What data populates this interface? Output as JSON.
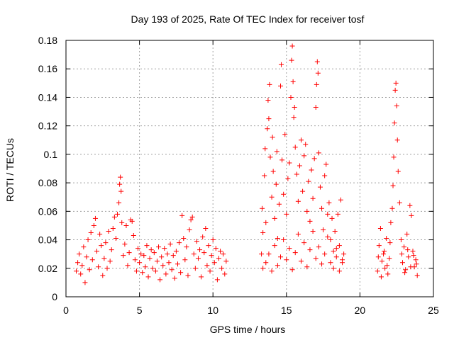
{
  "chart_data": {
    "type": "scatter",
    "title": "Day 193 of 2025, Rate Of TEC Index for receiver tosf",
    "xlabel": "GPS time / hours",
    "ylabel": "ROTI / TECUs",
    "xlim": [
      0,
      25
    ],
    "ylim": [
      0,
      0.18
    ],
    "x_ticks": [
      0,
      5,
      10,
      15,
      20,
      25
    ],
    "x_tick_labels": [
      "0",
      "5",
      "10",
      "15",
      "20",
      "25"
    ],
    "y_ticks": [
      0,
      0.02,
      0.04,
      0.06,
      0.08,
      0.1,
      0.12,
      0.14,
      0.16,
      0.18
    ],
    "y_tick_labels": [
      "0",
      "0.02",
      "0.04",
      "0.06",
      "0.08",
      "0.1",
      "0.12",
      "0.14",
      "0.16",
      "0.18"
    ],
    "grid": true,
    "marker": "+",
    "color": "#ff0000",
    "series": [
      {
        "name": "ROTI",
        "points": [
          [
            0.7,
            0.018
          ],
          [
            0.8,
            0.024
          ],
          [
            0.9,
            0.03
          ],
          [
            1.0,
            0.016
          ],
          [
            1.1,
            0.022
          ],
          [
            1.2,
            0.035
          ],
          [
            1.3,
            0.01
          ],
          [
            1.4,
            0.028
          ],
          [
            1.5,
            0.04
          ],
          [
            1.6,
            0.019
          ],
          [
            1.7,
            0.045
          ],
          [
            1.8,
            0.026
          ],
          [
            1.9,
            0.05
          ],
          [
            2.0,
            0.055
          ],
          [
            2.1,
            0.032
          ],
          [
            2.2,
            0.021
          ],
          [
            2.3,
            0.044
          ],
          [
            2.4,
            0.036
          ],
          [
            2.5,
            0.015
          ],
          [
            2.6,
            0.027
          ],
          [
            2.7,
            0.038
          ],
          [
            2.8,
            0.02
          ],
          [
            2.9,
            0.046
          ],
          [
            3.0,
            0.025
          ],
          [
            3.1,
            0.033
          ],
          [
            3.2,
            0.048
          ],
          [
            3.3,
            0.056
          ],
          [
            3.4,
            0.041
          ],
          [
            3.5,
            0.058
          ],
          [
            3.6,
            0.066
          ],
          [
            3.65,
            0.079
          ],
          [
            3.7,
            0.084
          ],
          [
            3.75,
            0.074
          ],
          [
            3.8,
            0.052
          ],
          [
            3.9,
            0.029
          ],
          [
            4.0,
            0.037
          ],
          [
            4.1,
            0.05
          ],
          [
            4.2,
            0.022
          ],
          [
            4.3,
            0.031
          ],
          [
            4.4,
            0.054
          ],
          [
            4.5,
            0.053
          ],
          [
            4.6,
            0.043
          ],
          [
            4.7,
            0.026
          ],
          [
            4.8,
            0.018
          ],
          [
            4.9,
            0.034
          ],
          [
            5.0,
            0.024
          ],
          [
            5.1,
            0.03
          ],
          [
            5.2,
            0.017
          ],
          [
            5.3,
            0.029
          ],
          [
            5.4,
            0.021
          ],
          [
            5.5,
            0.036
          ],
          [
            5.6,
            0.014
          ],
          [
            5.7,
            0.027
          ],
          [
            5.8,
            0.033
          ],
          [
            5.9,
            0.02
          ],
          [
            6.0,
            0.031
          ],
          [
            6.1,
            0.018
          ],
          [
            6.2,
            0.025
          ],
          [
            6.3,
            0.035
          ],
          [
            6.4,
            0.012
          ],
          [
            6.5,
            0.028
          ],
          [
            6.6,
            0.022
          ],
          [
            6.7,
            0.034
          ],
          [
            6.8,
            0.016
          ],
          [
            6.9,
            0.03
          ],
          [
            7.0,
            0.024
          ],
          [
            7.1,
            0.037
          ],
          [
            7.2,
            0.019
          ],
          [
            7.3,
            0.029
          ],
          [
            7.4,
            0.013
          ],
          [
            7.5,
            0.032
          ],
          [
            7.6,
            0.023
          ],
          [
            7.7,
            0.038
          ],
          [
            7.8,
            0.017
          ],
          [
            7.9,
            0.057
          ],
          [
            8.0,
            0.041
          ],
          [
            8.1,
            0.026
          ],
          [
            8.2,
            0.035
          ],
          [
            8.3,
            0.015
          ],
          [
            8.4,
            0.047
          ],
          [
            8.5,
            0.054
          ],
          [
            8.6,
            0.056
          ],
          [
            8.7,
            0.03
          ],
          [
            8.8,
            0.02
          ],
          [
            8.9,
            0.039
          ],
          [
            9.0,
            0.027
          ],
          [
            9.1,
            0.033
          ],
          [
            9.2,
            0.014
          ],
          [
            9.3,
            0.042
          ],
          [
            9.4,
            0.031
          ],
          [
            9.5,
            0.048
          ],
          [
            9.6,
            0.022
          ],
          [
            9.7,
            0.036
          ],
          [
            9.8,
            0.018
          ],
          [
            9.9,
            0.029
          ],
          [
            10.0,
            0.04
          ],
          [
            10.1,
            0.024
          ],
          [
            10.2,
            0.034
          ],
          [
            10.3,
            0.012
          ],
          [
            10.4,
            0.027
          ],
          [
            10.5,
            0.032
          ],
          [
            10.6,
            0.02
          ],
          [
            10.7,
            0.03
          ],
          [
            10.8,
            0.016
          ],
          [
            10.9,
            0.025
          ],
          [
            13.3,
            0.03
          ],
          [
            13.35,
            0.062
          ],
          [
            13.4,
            0.045
          ],
          [
            13.5,
            0.085
          ],
          [
            13.55,
            0.104
          ],
          [
            13.6,
            0.052
          ],
          [
            13.7,
            0.118
          ],
          [
            13.75,
            0.138
          ],
          [
            13.8,
            0.125
          ],
          [
            13.85,
            0.149
          ],
          [
            13.9,
            0.098
          ],
          [
            14.0,
            0.07
          ],
          [
            14.05,
            0.112
          ],
          [
            14.1,
            0.088
          ],
          [
            14.2,
            0.055
          ],
          [
            14.3,
            0.079
          ],
          [
            14.35,
            0.102
          ],
          [
            14.4,
            0.041
          ],
          [
            14.5,
            0.065
          ],
          [
            14.6,
            0.148
          ],
          [
            14.65,
            0.163
          ],
          [
            14.7,
            0.096
          ],
          [
            14.8,
            0.072
          ],
          [
            14.9,
            0.114
          ],
          [
            15.0,
            0.058
          ],
          [
            15.1,
            0.083
          ],
          [
            15.2,
            0.094
          ],
          [
            15.3,
            0.14
          ],
          [
            15.35,
            0.166
          ],
          [
            15.4,
            0.176
          ],
          [
            15.45,
            0.151
          ],
          [
            15.5,
            0.126
          ],
          [
            15.55,
            0.133
          ],
          [
            15.6,
            0.105
          ],
          [
            15.7,
            0.086
          ],
          [
            15.8,
            0.067
          ],
          [
            15.9,
            0.092
          ],
          [
            16.0,
            0.11
          ],
          [
            16.1,
            0.074
          ],
          [
            16.2,
            0.099
          ],
          [
            16.3,
            0.107
          ],
          [
            16.4,
            0.06
          ],
          [
            16.5,
            0.081
          ],
          [
            16.6,
            0.053
          ],
          [
            16.7,
            0.089
          ],
          [
            16.8,
            0.069
          ],
          [
            16.9,
            0.097
          ],
          [
            17.0,
            0.133
          ],
          [
            17.05,
            0.149
          ],
          [
            17.1,
            0.165
          ],
          [
            17.15,
            0.157
          ],
          [
            17.2,
            0.101
          ],
          [
            17.3,
            0.077
          ],
          [
            17.4,
            0.062
          ],
          [
            17.5,
            0.047
          ],
          [
            17.6,
            0.085
          ],
          [
            17.7,
            0.093
          ],
          [
            17.8,
            0.058
          ],
          [
            17.9,
            0.066
          ],
          [
            18.0,
            0.04
          ],
          [
            18.1,
            0.055
          ],
          [
            18.2,
            0.032
          ],
          [
            18.3,
            0.046
          ],
          [
            18.4,
            0.028
          ],
          [
            18.5,
            0.058
          ],
          [
            18.6,
            0.036
          ],
          [
            18.7,
            0.068
          ],
          [
            18.8,
            0.024
          ],
          [
            18.9,
            0.03
          ],
          [
            13.4,
            0.02
          ],
          [
            13.6,
            0.024
          ],
          [
            13.8,
            0.03
          ],
          [
            14.0,
            0.018
          ],
          [
            14.2,
            0.036
          ],
          [
            14.4,
            0.022
          ],
          [
            14.6,
            0.028
          ],
          [
            14.8,
            0.04
          ],
          [
            15.0,
            0.026
          ],
          [
            15.2,
            0.034
          ],
          [
            15.4,
            0.019
          ],
          [
            15.6,
            0.031
          ],
          [
            15.8,
            0.044
          ],
          [
            16.0,
            0.025
          ],
          [
            16.2,
            0.038
          ],
          [
            16.4,
            0.021
          ],
          [
            16.6,
            0.033
          ],
          [
            16.8,
            0.046
          ],
          [
            17.0,
            0.027
          ],
          [
            17.2,
            0.035
          ],
          [
            17.4,
            0.023
          ],
          [
            17.6,
            0.03
          ],
          [
            17.8,
            0.042
          ],
          [
            18.0,
            0.024
          ],
          [
            18.2,
            0.02
          ],
          [
            18.4,
            0.034
          ],
          [
            18.6,
            0.018
          ],
          [
            18.8,
            0.026
          ],
          [
            21.2,
            0.018
          ],
          [
            21.3,
            0.036
          ],
          [
            21.4,
            0.048
          ],
          [
            21.5,
            0.025
          ],
          [
            21.6,
            0.03
          ],
          [
            21.7,
            0.02
          ],
          [
            21.8,
            0.041
          ],
          [
            21.9,
            0.016
          ],
          [
            22.0,
            0.027
          ],
          [
            22.1,
            0.052
          ],
          [
            22.2,
            0.062
          ],
          [
            22.25,
            0.078
          ],
          [
            22.3,
            0.098
          ],
          [
            22.35,
            0.122
          ],
          [
            22.4,
            0.145
          ],
          [
            22.45,
            0.15
          ],
          [
            22.5,
            0.134
          ],
          [
            22.55,
            0.11
          ],
          [
            22.6,
            0.088
          ],
          [
            22.7,
            0.066
          ],
          [
            22.8,
            0.04
          ],
          [
            22.9,
            0.024
          ],
          [
            23.0,
            0.035
          ],
          [
            23.1,
            0.019
          ],
          [
            23.2,
            0.044
          ],
          [
            23.3,
            0.028
          ],
          [
            23.4,
            0.064
          ],
          [
            23.5,
            0.057
          ],
          [
            23.6,
            0.032
          ],
          [
            23.7,
            0.021
          ],
          [
            23.8,
            0.026
          ],
          [
            23.9,
            0.015
          ],
          [
            21.25,
            0.028
          ],
          [
            21.45,
            0.014
          ],
          [
            21.65,
            0.032
          ],
          [
            21.85,
            0.022
          ],
          [
            22.05,
            0.038
          ],
          [
            22.85,
            0.03
          ],
          [
            23.05,
            0.017
          ],
          [
            23.25,
            0.033
          ],
          [
            23.45,
            0.021
          ],
          [
            23.65,
            0.029
          ],
          [
            23.85,
            0.023
          ]
        ]
      }
    ]
  }
}
